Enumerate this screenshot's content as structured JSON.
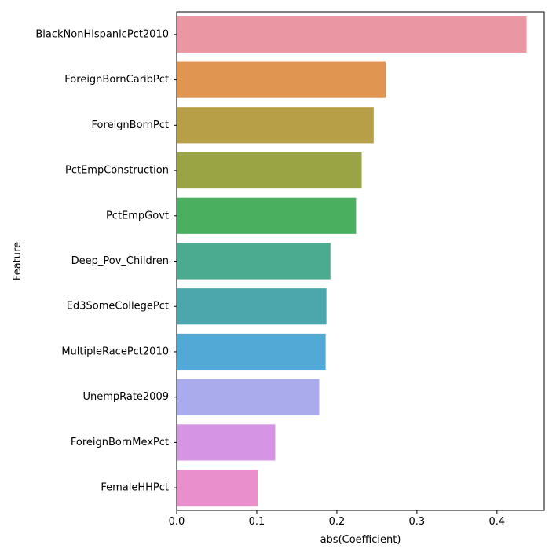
{
  "chart_data": {
    "type": "bar",
    "orientation": "horizontal",
    "categories": [
      "BlackNonHispanicPct2010",
      "ForeignBornCaribPct",
      "ForeignBornPct",
      "PctEmpConstruction",
      "PctEmpGovt",
      "Deep_Pov_Children",
      "Ed3SomeCollegePct",
      "MultipleRacePct2010",
      "UnempRate2009",
      "ForeignBornMexPct",
      "FemaleHHPct"
    ],
    "values": [
      0.437,
      0.261,
      0.246,
      0.231,
      0.224,
      0.192,
      0.187,
      0.186,
      0.178,
      0.123,
      0.101
    ],
    "colors": [
      "#ea96a3",
      "#e09551",
      "#b69f47",
      "#9ba444",
      "#4ab060",
      "#4bab90",
      "#4ca7ad",
      "#52a9d6",
      "#aaabec",
      "#d694e5",
      "#e98fcb"
    ],
    "xlabel": "abs(Coefficient)",
    "ylabel": "Feature",
    "xlim": [
      0,
      0.459
    ],
    "xticks": [
      0.0,
      0.1,
      0.2,
      0.3,
      0.4
    ],
    "xtick_labels": [
      "0.0",
      "0.1",
      "0.2",
      "0.3",
      "0.4"
    ],
    "grid": false,
    "legend": "none"
  }
}
